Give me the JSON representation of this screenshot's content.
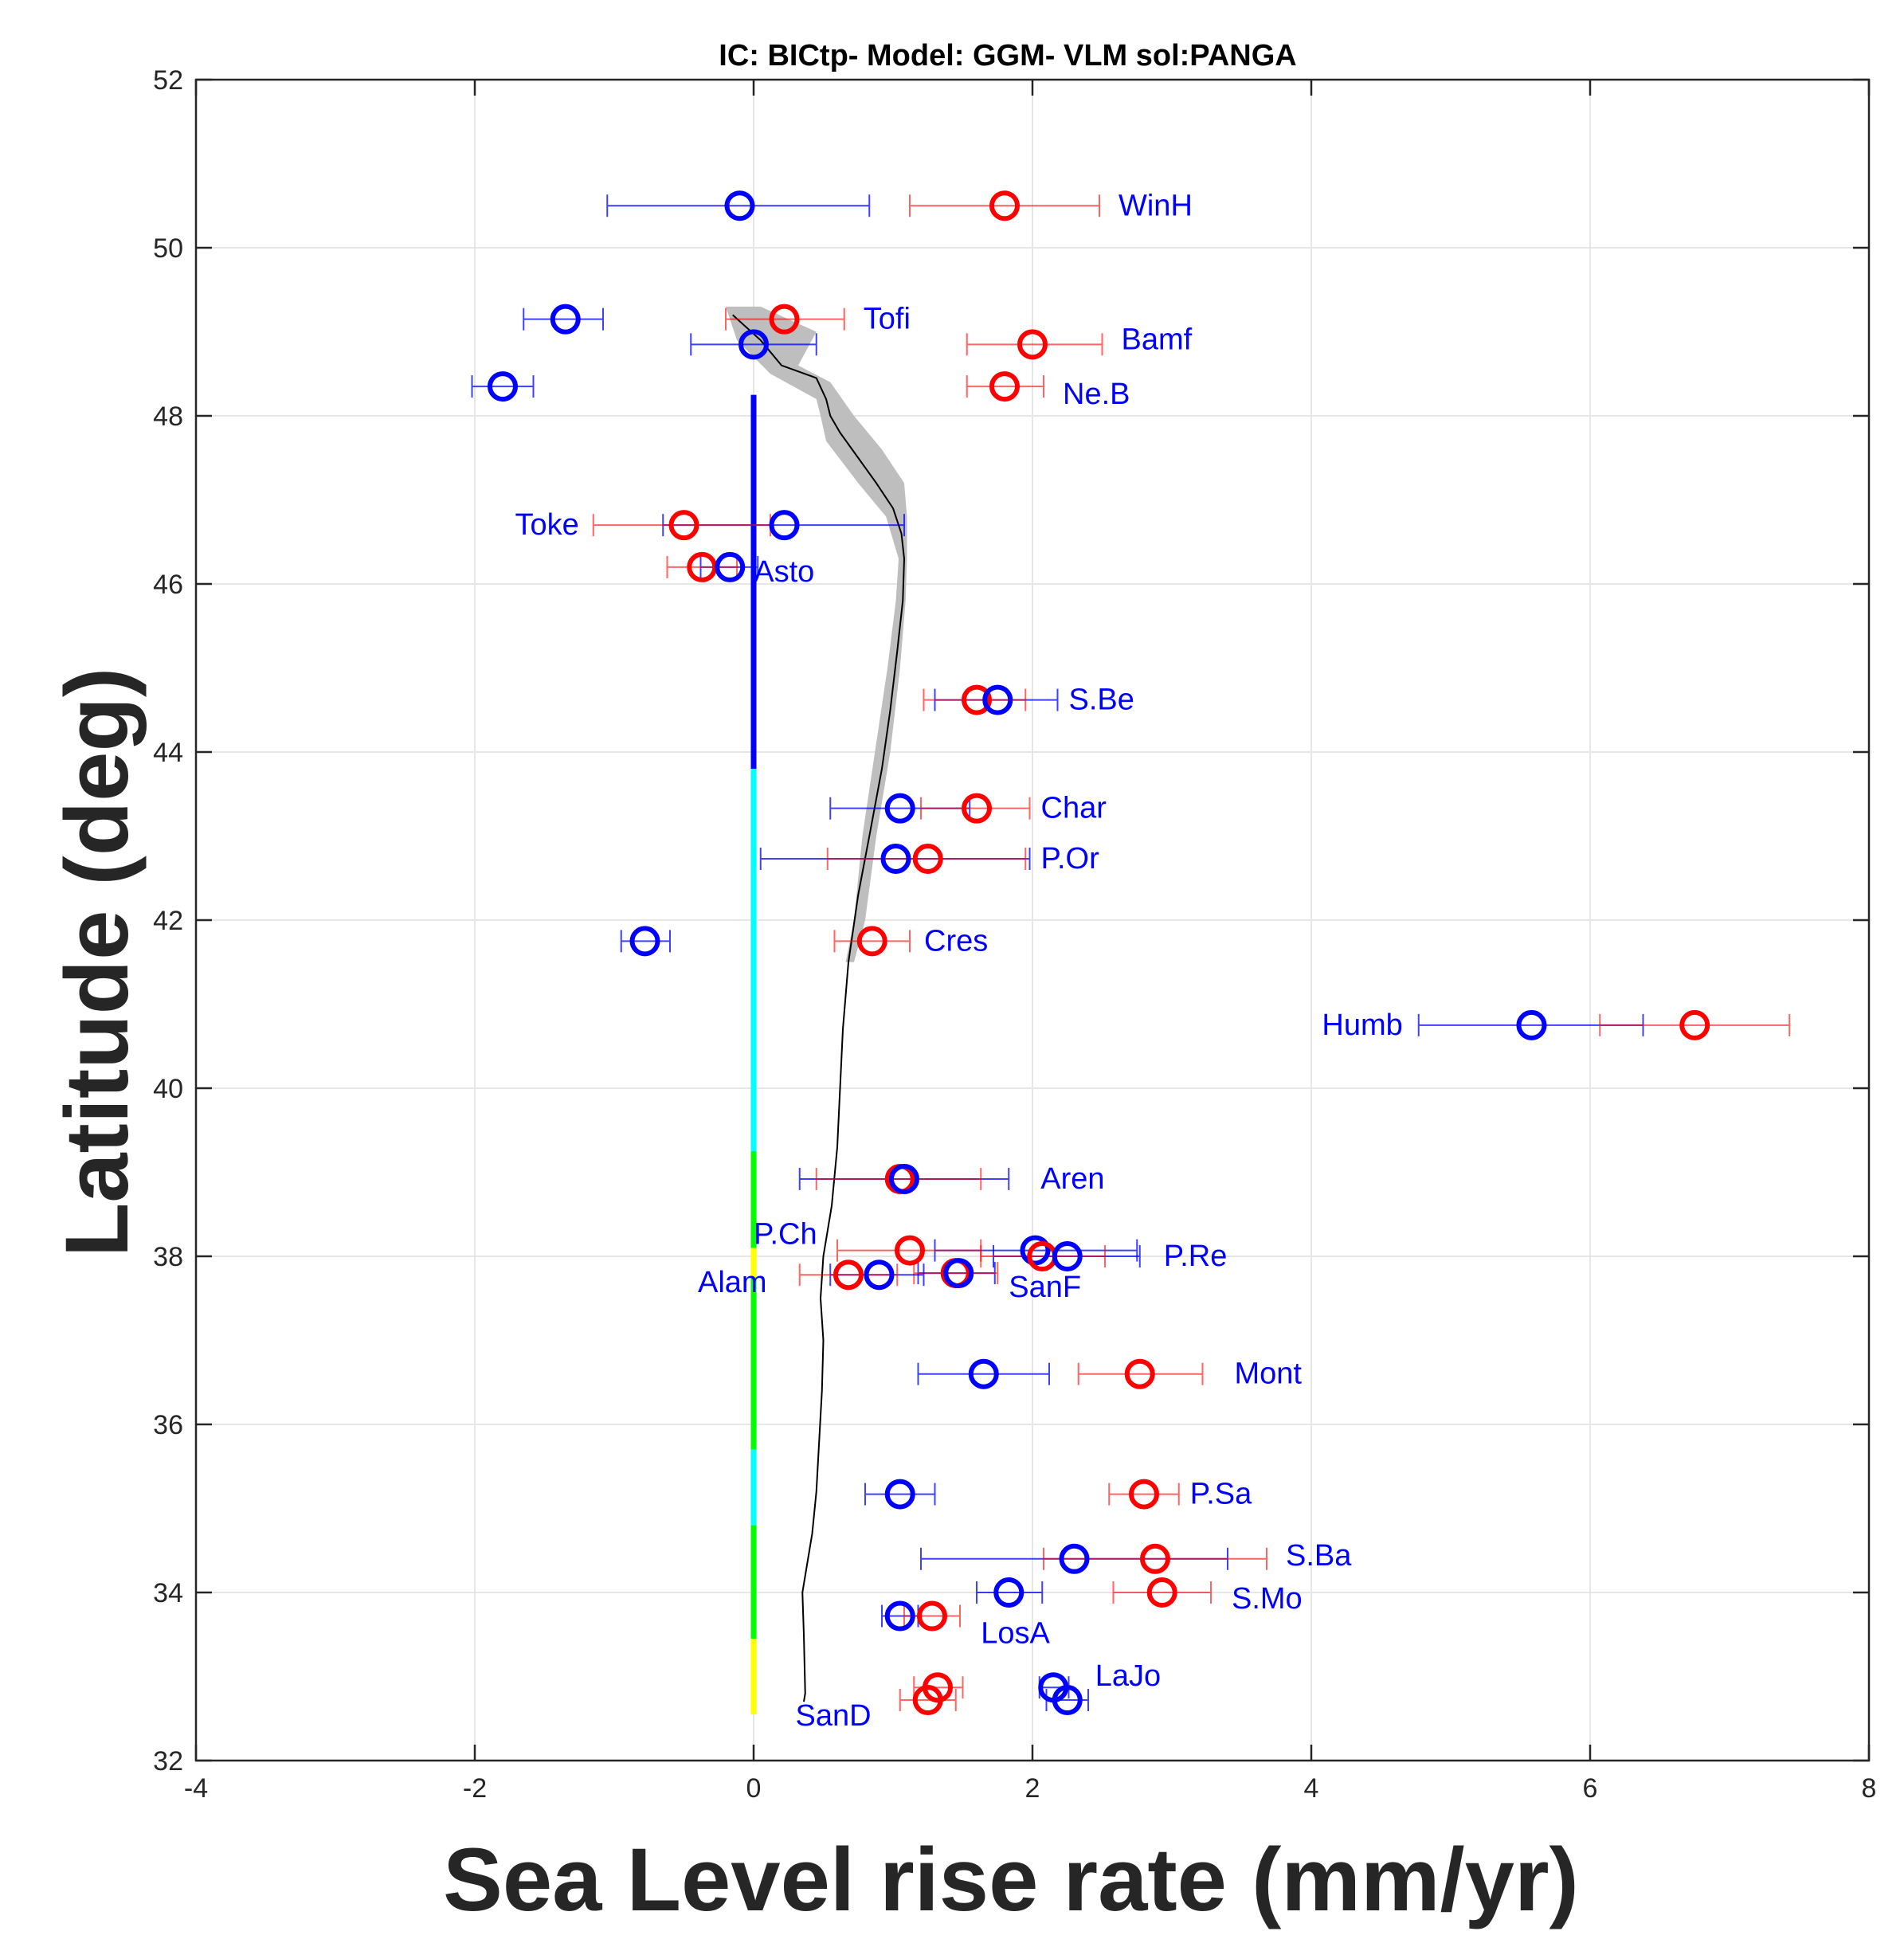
{
  "chart_data": {
    "type": "scatter",
    "title": "IC: BICtp- Model: GGM- VLM sol:PANGA",
    "xlabel": "Sea Level rise rate  (mm/yr)",
    "ylabel": "Latitude (deg)",
    "xlim": [
      -4,
      8
    ],
    "ylim": [
      32,
      52
    ],
    "xticks": [
      -4,
      -2,
      0,
      2,
      4,
      6,
      8
    ],
    "yticks": [
      32,
      34,
      36,
      38,
      40,
      42,
      44,
      46,
      48,
      50,
      52
    ],
    "grid": true,
    "colors": {
      "blue_series": "#0000ff",
      "red_series": "#ff0000",
      "label": "#0000ff",
      "model_band": "#bebebe",
      "model_line": "#000000"
    },
    "stations": [
      {
        "name": "WinH",
        "lat": 50.5,
        "blue": {
          "x": -0.1,
          "lo": -1.05,
          "hi": 0.83
        },
        "red": {
          "x": 1.8,
          "lo": 1.12,
          "hi": 2.48
        }
      },
      {
        "name": "Tofi",
        "lat": 49.15,
        "blue": {
          "x": -1.35,
          "lo": -1.65,
          "hi": -1.08
        },
        "red": {
          "x": 0.22,
          "lo": -0.2,
          "hi": 0.65
        }
      },
      {
        "name": "Bamf",
        "lat": 48.85,
        "blue": {
          "x": 0.0,
          "lo": -0.45,
          "hi": 0.45
        },
        "red": {
          "x": 2.0,
          "lo": 1.53,
          "hi": 2.5
        }
      },
      {
        "name": "Ne.B",
        "lat": 48.35,
        "blue": {
          "x": -1.8,
          "lo": -2.02,
          "hi": -1.58
        },
        "red": {
          "x": 1.8,
          "lo": 1.53,
          "hi": 2.08
        }
      },
      {
        "name": "Toke",
        "lat": 46.7,
        "blue": {
          "x": 0.22,
          "lo": -0.65,
          "hi": 1.08
        },
        "red": {
          "x": -0.5,
          "lo": -1.15,
          "hi": 0.12
        }
      },
      {
        "name": "Asto",
        "lat": 46.2,
        "blue": {
          "x": -0.17,
          "lo": -0.38,
          "hi": 0.03
        },
        "red": {
          "x": -0.37,
          "lo": -0.62,
          "hi": -0.12
        }
      },
      {
        "name": "S.Be",
        "lat": 44.62,
        "blue": {
          "x": 1.75,
          "lo": 1.3,
          "hi": 2.18
        },
        "red": {
          "x": 1.6,
          "lo": 1.22,
          "hi": 1.95
        }
      },
      {
        "name": "Char",
        "lat": 43.33,
        "blue": {
          "x": 1.05,
          "lo": 0.55,
          "hi": 1.55
        },
        "red": {
          "x": 1.6,
          "lo": 1.2,
          "hi": 1.98
        }
      },
      {
        "name": "P.Or",
        "lat": 42.73,
        "blue": {
          "x": 1.02,
          "lo": 0.05,
          "hi": 1.98
        },
        "red": {
          "x": 1.25,
          "lo": 0.53,
          "hi": 1.95
        }
      },
      {
        "name": "Cres",
        "lat": 41.75,
        "blue": {
          "x": -0.78,
          "lo": -0.95,
          "hi": -0.6
        },
        "red": {
          "x": 0.85,
          "lo": 0.58,
          "hi": 1.12
        }
      },
      {
        "name": "Humb",
        "lat": 40.75,
        "blue": {
          "x": 5.58,
          "lo": 4.77,
          "hi": 6.38
        },
        "red": {
          "x": 6.75,
          "lo": 6.07,
          "hi": 7.43
        }
      },
      {
        "name": "Aren",
        "lat": 38.92,
        "blue": {
          "x": 1.08,
          "lo": 0.33,
          "hi": 1.83
        },
        "red": {
          "x": 1.05,
          "lo": 0.45,
          "hi": 1.63
        }
      },
      {
        "name": "P.Ch",
        "lat": 38.07,
        "blue": {
          "x": 2.02,
          "lo": 1.3,
          "hi": 2.75
        },
        "red": {
          "x": 1.12,
          "lo": 0.6,
          "hi": 1.63
        }
      },
      {
        "name": "P.Re",
        "lat": 38.0,
        "blue": {
          "x": 2.25,
          "lo": 1.72,
          "hi": 2.77
        },
        "red": {
          "x": 2.07,
          "lo": 1.63,
          "hi": 2.52
        }
      },
      {
        "name": "SanF",
        "lat": 37.8,
        "blue": {
          "x": 1.47,
          "lo": 1.18,
          "hi": 1.73
        },
        "red": {
          "x": 1.45,
          "lo": 1.15,
          "hi": 1.75
        }
      },
      {
        "name": "Alam",
        "lat": 37.78,
        "blue": {
          "x": 0.9,
          "lo": 0.55,
          "hi": 1.22
        },
        "red": {
          "x": 0.68,
          "lo": 0.33,
          "hi": 1.03
        }
      },
      {
        "name": "Mont",
        "lat": 36.6,
        "blue": {
          "x": 1.65,
          "lo": 1.18,
          "hi": 2.12
        },
        "red": {
          "x": 2.77,
          "lo": 2.33,
          "hi": 3.22
        }
      },
      {
        "name": "P.Sa",
        "lat": 35.17,
        "blue": {
          "x": 1.05,
          "lo": 0.8,
          "hi": 1.3
        },
        "red": {
          "x": 2.8,
          "lo": 2.55,
          "hi": 3.05
        }
      },
      {
        "name": "S.Ba",
        "lat": 34.4,
        "blue": {
          "x": 2.3,
          "lo": 1.2,
          "hi": 3.4
        },
        "red": {
          "x": 2.88,
          "lo": 2.08,
          "hi": 3.68
        }
      },
      {
        "name": "S.Mo",
        "lat": 34.0,
        "blue": {
          "x": 1.83,
          "lo": 1.6,
          "hi": 2.07
        },
        "red": {
          "x": 2.93,
          "lo": 2.58,
          "hi": 3.28
        }
      },
      {
        "name": "LosA",
        "lat": 33.72,
        "blue": {
          "x": 1.05,
          "lo": 0.92,
          "hi": 1.18
        },
        "red": {
          "x": 1.28,
          "lo": 1.08,
          "hi": 1.48
        }
      },
      {
        "name": "LaJo",
        "lat": 32.87,
        "blue": {
          "x": 2.15,
          "lo": 2.05,
          "hi": 2.26
        },
        "red": {
          "x": 1.32,
          "lo": 1.15,
          "hi": 1.5
        }
      },
      {
        "name": "SanD",
        "lat": 32.72,
        "blue": {
          "x": 2.25,
          "lo": 2.1,
          "hi": 2.4
        },
        "red": {
          "x": 1.25,
          "lo": 1.05,
          "hi": 1.45
        }
      }
    ],
    "model_line": [
      {
        "lat": 49.2,
        "x": -0.15
      },
      {
        "lat": 48.9,
        "x": 0.05
      },
      {
        "lat": 48.6,
        "x": 0.2
      },
      {
        "lat": 48.45,
        "x": 0.45
      },
      {
        "lat": 48.2,
        "x": 0.52
      },
      {
        "lat": 48.0,
        "x": 0.55
      },
      {
        "lat": 47.8,
        "x": 0.62
      },
      {
        "lat": 47.5,
        "x": 0.75
      },
      {
        "lat": 47.2,
        "x": 0.88
      },
      {
        "lat": 46.9,
        "x": 1.0
      },
      {
        "lat": 46.6,
        "x": 1.06
      },
      {
        "lat": 46.3,
        "x": 1.08
      },
      {
        "lat": 45.8,
        "x": 1.07
      },
      {
        "lat": 45.2,
        "x": 1.03
      },
      {
        "lat": 44.5,
        "x": 0.98
      },
      {
        "lat": 43.8,
        "x": 0.92
      },
      {
        "lat": 43.0,
        "x": 0.83
      },
      {
        "lat": 42.3,
        "x": 0.75
      },
      {
        "lat": 41.5,
        "x": 0.68
      },
      {
        "lat": 40.7,
        "x": 0.64
      },
      {
        "lat": 40.0,
        "x": 0.62
      },
      {
        "lat": 39.3,
        "x": 0.6
      },
      {
        "lat": 38.6,
        "x": 0.56
      },
      {
        "lat": 38.0,
        "x": 0.5
      },
      {
        "lat": 37.5,
        "x": 0.48
      },
      {
        "lat": 37.0,
        "x": 0.5
      },
      {
        "lat": 36.4,
        "x": 0.49
      },
      {
        "lat": 35.8,
        "x": 0.47
      },
      {
        "lat": 35.2,
        "x": 0.45
      },
      {
        "lat": 34.7,
        "x": 0.42
      },
      {
        "lat": 34.3,
        "x": 0.38
      },
      {
        "lat": 34.0,
        "x": 0.35
      },
      {
        "lat": 33.5,
        "x": 0.36
      },
      {
        "lat": 32.8,
        "x": 0.37
      },
      {
        "lat": 32.7,
        "x": 0.36
      }
    ],
    "model_band": {
      "right": [
        {
          "lat": 49.3,
          "x": 0.05
        },
        {
          "lat": 49.0,
          "x": 0.45
        },
        {
          "lat": 48.6,
          "x": 0.32
        },
        {
          "lat": 48.4,
          "x": 0.55
        },
        {
          "lat": 48.0,
          "x": 0.72
        },
        {
          "lat": 47.6,
          "x": 0.92
        },
        {
          "lat": 47.2,
          "x": 1.08
        },
        {
          "lat": 46.8,
          "x": 1.1
        },
        {
          "lat": 46.3,
          "x": 1.1
        },
        {
          "lat": 45.8,
          "x": 1.09
        },
        {
          "lat": 45.0,
          "x": 1.05
        },
        {
          "lat": 44.0,
          "x": 0.98
        },
        {
          "lat": 43.0,
          "x": 0.88
        },
        {
          "lat": 42.0,
          "x": 0.8
        },
        {
          "lat": 41.5,
          "x": 0.72
        }
      ],
      "left": [
        {
          "lat": 41.5,
          "x": 0.66
        },
        {
          "lat": 42.0,
          "x": 0.72
        },
        {
          "lat": 43.0,
          "x": 0.78
        },
        {
          "lat": 44.0,
          "x": 0.87
        },
        {
          "lat": 45.0,
          "x": 0.96
        },
        {
          "lat": 45.8,
          "x": 1.02
        },
        {
          "lat": 46.3,
          "x": 1.04
        },
        {
          "lat": 46.8,
          "x": 0.95
        },
        {
          "lat": 47.2,
          "x": 0.75
        },
        {
          "lat": 47.7,
          "x": 0.52
        },
        {
          "lat": 48.0,
          "x": 0.48
        },
        {
          "lat": 48.2,
          "x": 0.45
        },
        {
          "lat": 48.5,
          "x": 0.12
        },
        {
          "lat": 48.9,
          "x": -0.12
        },
        {
          "lat": 49.3,
          "x": -0.2
        }
      ]
    },
    "vertical_bar": [
      {
        "from": 48.25,
        "to": 43.8,
        "color": "#0000ff"
      },
      {
        "from": 43.8,
        "to": 39.25,
        "color": "#00ffff"
      },
      {
        "from": 39.25,
        "to": 38.1,
        "color": "#00ff00"
      },
      {
        "from": 38.1,
        "to": 37.75,
        "color": "#ffff00"
      },
      {
        "from": 37.75,
        "to": 35.7,
        "color": "#00ff00"
      },
      {
        "from": 35.7,
        "to": 34.8,
        "color": "#00ffff"
      },
      {
        "from": 34.8,
        "to": 33.45,
        "color": "#00ff00"
      },
      {
        "from": 33.45,
        "to": 32.55,
        "color": "#ffff00"
      }
    ]
  }
}
